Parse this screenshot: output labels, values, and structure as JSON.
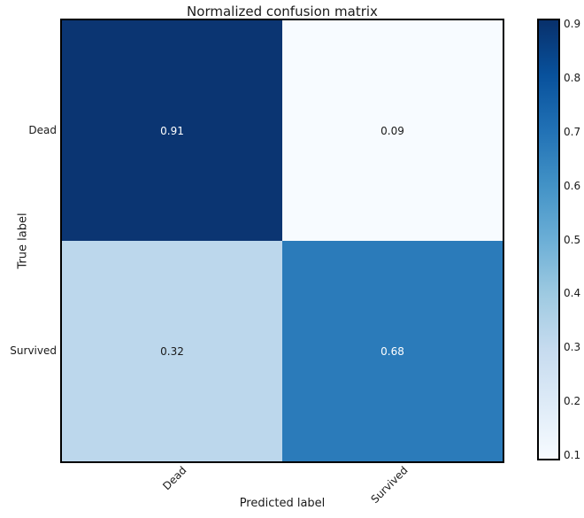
{
  "figure": {
    "title": "Normalized confusion matrix",
    "xlabel": "Predicted label",
    "ylabel": "True label"
  },
  "chart_data": {
    "type": "heatmap",
    "title": "Normalized confusion matrix",
    "xlabel": "Predicted label",
    "ylabel": "True label",
    "x_categories": [
      "Dead",
      "Survived"
    ],
    "y_categories": [
      "Dead",
      "Survived"
    ],
    "matrix": [
      [
        0.91,
        0.09
      ],
      [
        0.32,
        0.68
      ]
    ],
    "colormap": "Blues",
    "grid": false,
    "legend_position": "right-colorbar",
    "cells": [
      {
        "row": "Dead",
        "col": "Dead",
        "value": 0.91,
        "label": "0.91",
        "bg": "#0b3572",
        "fg": "#ffffff"
      },
      {
        "row": "Dead",
        "col": "Survived",
        "value": 0.09,
        "label": "0.09",
        "bg": "#f7fbff",
        "fg": "#1a1a1a"
      },
      {
        "row": "Survived",
        "col": "Dead",
        "value": 0.32,
        "label": "0.32",
        "bg": "#bcd7ec",
        "fg": "#1a1a1a"
      },
      {
        "row": "Survived",
        "col": "Survived",
        "value": 0.68,
        "label": "0.68",
        "bg": "#2b7bba",
        "fg": "#ffffff"
      }
    ],
    "colorbar": {
      "vmin": 0.09,
      "vmax": 0.91,
      "tick_labels": [
        "0.9",
        "0.8",
        "0.7",
        "0.6",
        "0.5",
        "0.4",
        "0.3",
        "0.2",
        "0.1"
      ],
      "tick_values": [
        0.9,
        0.8,
        0.7,
        0.6,
        0.5,
        0.4,
        0.3,
        0.2,
        0.1
      ],
      "stops": [
        {
          "pos": 0,
          "color": "#08306b"
        },
        {
          "pos": 12.5,
          "color": "#08519c"
        },
        {
          "pos": 25,
          "color": "#2171b5"
        },
        {
          "pos": 37.5,
          "color": "#4292c6"
        },
        {
          "pos": 50,
          "color": "#6baed6"
        },
        {
          "pos": 62.5,
          "color": "#9ecae1"
        },
        {
          "pos": 75,
          "color": "#c6dbef"
        },
        {
          "pos": 87.5,
          "color": "#deebf7"
        },
        {
          "pos": 100,
          "color": "#f7fbff"
        }
      ]
    }
  }
}
